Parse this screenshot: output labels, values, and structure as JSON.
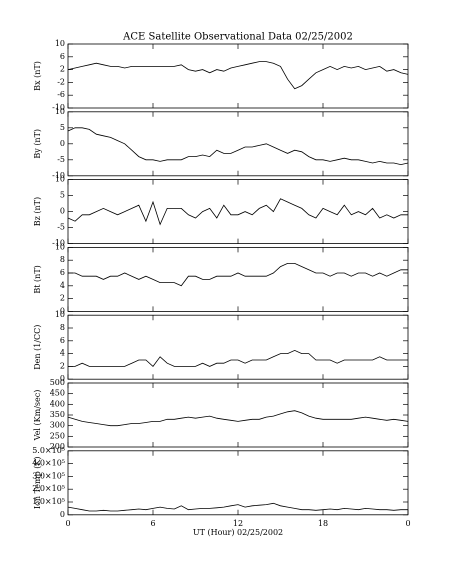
{
  "title": "ACE Satellite Observational Data   02/25/2002",
  "xlabel": "UT (Hour)   02/25/2002",
  "chart_data": [
    {
      "type": "line",
      "ylabel": "Bx (nT)",
      "color": "#000000",
      "x": [
        0,
        0.5,
        1,
        1.5,
        2,
        2.5,
        3,
        3.5,
        4,
        4.5,
        5,
        5.5,
        6,
        6.5,
        7,
        7.5,
        8,
        8.5,
        9,
        9.5,
        10,
        10.5,
        11,
        11.5,
        12,
        12.5,
        13,
        13.5,
        14,
        14.5,
        15,
        15.5,
        16,
        16.5,
        17,
        17.5,
        18,
        18.5,
        19,
        19.5,
        20,
        20.5,
        21,
        21.5,
        22,
        22.5,
        23,
        23.5,
        24
      ],
      "values": [
        2,
        2.5,
        3,
        3.5,
        4,
        3.5,
        3,
        3,
        2.5,
        3,
        3,
        3,
        3,
        3,
        3,
        3,
        3.5,
        2,
        1.5,
        2,
        1,
        2,
        1.5,
        2.5,
        3,
        3.5,
        4,
        4.5,
        4.5,
        4,
        3,
        -1,
        -4,
        -3,
        -1,
        1,
        2,
        3,
        2,
        3,
        2.5,
        3,
        2,
        2.5,
        3,
        1.5,
        2,
        1,
        0.5
      ],
      "xlim": [
        0,
        24
      ],
      "xticks": [
        0,
        6,
        12,
        18,
        {
          "value": 24,
          "label": "0"
        }
      ],
      "ylim": [
        -10,
        10
      ],
      "yticks": [
        -10,
        -6,
        -2,
        2,
        6,
        10
      ]
    },
    {
      "type": "line",
      "ylabel": "By (nT)",
      "color": "#000000",
      "x": [
        0,
        0.5,
        1,
        1.5,
        2,
        2.5,
        3,
        3.5,
        4,
        4.5,
        5,
        5.5,
        6,
        6.5,
        7,
        7.5,
        8,
        8.5,
        9,
        9.5,
        10,
        10.5,
        11,
        11.5,
        12,
        12.5,
        13,
        13.5,
        14,
        14.5,
        15,
        15.5,
        16,
        16.5,
        17,
        17.5,
        18,
        18.5,
        19,
        19.5,
        20,
        20.5,
        21,
        21.5,
        22,
        22.5,
        23,
        23.5,
        24
      ],
      "values": [
        4,
        5,
        5,
        4.5,
        3,
        2.5,
        2,
        1,
        0,
        -2,
        -4,
        -5,
        -5,
        -5.5,
        -5,
        -5,
        -5,
        -4,
        -4,
        -3.5,
        -4,
        -2,
        -3,
        -3,
        -2,
        -1,
        -1,
        -0.5,
        0,
        -1,
        -2,
        -3,
        -2,
        -2.5,
        -4,
        -5,
        -5,
        -5.5,
        -5,
        -4.5,
        -5,
        -5,
        -5.5,
        -6,
        -5.5,
        -6,
        -6,
        -6.5,
        -6
      ],
      "xlim": [
        0,
        24
      ],
      "xticks": [
        0,
        6,
        12,
        18,
        {
          "value": 24,
          "label": "0"
        }
      ],
      "ylim": [
        -10,
        10
      ],
      "yticks": [
        -10,
        -5,
        0,
        5,
        10
      ]
    },
    {
      "type": "line",
      "ylabel": "Bz (nT)",
      "color": "#000000",
      "x": [
        0,
        0.5,
        1,
        1.5,
        2,
        2.5,
        3,
        3.5,
        4,
        4.5,
        5,
        5.5,
        6,
        6.5,
        7,
        7.5,
        8,
        8.5,
        9,
        9.5,
        10,
        10.5,
        11,
        11.5,
        12,
        12.5,
        13,
        13.5,
        14,
        14.5,
        15,
        15.5,
        16,
        16.5,
        17,
        17.5,
        18,
        18.5,
        19,
        19.5,
        20,
        20.5,
        21,
        21.5,
        22,
        22.5,
        23,
        23.5,
        24
      ],
      "values": [
        -2,
        -3,
        -1,
        -1,
        0,
        1,
        0,
        -1,
        0,
        1,
        2,
        -3,
        3,
        -4,
        1,
        1,
        1,
        -1,
        -2,
        0,
        1,
        -2,
        2,
        -1,
        -1,
        0,
        -1,
        1,
        2,
        0,
        4,
        3,
        2,
        1,
        -1,
        -2,
        1,
        0,
        -1,
        2,
        -1,
        0,
        -1,
        1,
        -2,
        -1,
        -2,
        -1,
        -1
      ],
      "xlim": [
        0,
        24
      ],
      "xticks": [
        0,
        6,
        12,
        18,
        {
          "value": 24,
          "label": "0"
        }
      ],
      "ylim": [
        -10,
        10
      ],
      "yticks": [
        -10,
        -5,
        0,
        5,
        10
      ]
    },
    {
      "type": "line",
      "ylabel": "Bt (nT)",
      "color": "#000000",
      "x": [
        0,
        0.5,
        1,
        1.5,
        2,
        2.5,
        3,
        3.5,
        4,
        4.5,
        5,
        5.5,
        6,
        6.5,
        7,
        7.5,
        8,
        8.5,
        9,
        9.5,
        10,
        10.5,
        11,
        11.5,
        12,
        12.5,
        13,
        13.5,
        14,
        14.5,
        15,
        15.5,
        16,
        16.5,
        17,
        17.5,
        18,
        18.5,
        19,
        19.5,
        20,
        20.5,
        21,
        21.5,
        22,
        22.5,
        23,
        23.5,
        24
      ],
      "values": [
        6,
        6,
        5.5,
        5.5,
        5.5,
        5,
        5.5,
        5.5,
        6,
        5.5,
        5,
        5.5,
        5,
        4.5,
        4.5,
        4.5,
        4,
        5.5,
        5.5,
        5,
        5,
        5.5,
        5.5,
        5.5,
        6,
        5.5,
        5.5,
        5.5,
        5.5,
        6,
        7,
        7.5,
        7.5,
        7,
        6.5,
        6,
        6,
        5.5,
        6,
        6,
        5.5,
        6,
        6,
        5.5,
        6,
        5.5,
        6,
        6.5,
        6.5
      ],
      "xlim": [
        0,
        24
      ],
      "xticks": [
        0,
        6,
        12,
        18,
        {
          "value": 24,
          "label": "0"
        }
      ],
      "ylim": [
        0,
        10
      ],
      "yticks": [
        0,
        2,
        4,
        6,
        8,
        10
      ]
    },
    {
      "type": "line",
      "ylabel": "Den (1/CC)",
      "color": "#000000",
      "x": [
        0,
        0.5,
        1,
        1.5,
        2,
        2.5,
        3,
        3.5,
        4,
        4.5,
        5,
        5.5,
        6,
        6.5,
        7,
        7.5,
        8,
        8.5,
        9,
        9.5,
        10,
        10.5,
        11,
        11.5,
        12,
        12.5,
        13,
        13.5,
        14,
        14.5,
        15,
        15.5,
        16,
        16.5,
        17,
        17.5,
        18,
        18.5,
        19,
        19.5,
        20,
        20.5,
        21,
        21.5,
        22,
        22.5,
        23,
        23.5,
        24
      ],
      "values": [
        2,
        2,
        2.5,
        2,
        2,
        2,
        2,
        2,
        2,
        2.5,
        3,
        3,
        2,
        3.5,
        2.5,
        2,
        2,
        2,
        2,
        2.5,
        2,
        2.5,
        2.5,
        3,
        3,
        2.5,
        3,
        3,
        3,
        3.5,
        4,
        4,
        4.5,
        4,
        4,
        3,
        3,
        3,
        2.5,
        3,
        3,
        3,
        3,
        3,
        3.5,
        3,
        3,
        3,
        3
      ],
      "xlim": [
        0,
        24
      ],
      "xticks": [
        0,
        6,
        12,
        18,
        {
          "value": 24,
          "label": "0"
        }
      ],
      "ylim": [
        0,
        10
      ],
      "yticks": [
        0,
        2,
        4,
        6,
        8,
        10
      ]
    },
    {
      "type": "line",
      "ylabel": "Vel (Km/sec)",
      "color": "#000000",
      "x": [
        0,
        0.5,
        1,
        1.5,
        2,
        2.5,
        3,
        3.5,
        4,
        4.5,
        5,
        5.5,
        6,
        6.5,
        7,
        7.5,
        8,
        8.5,
        9,
        9.5,
        10,
        10.5,
        11,
        11.5,
        12,
        12.5,
        13,
        13.5,
        14,
        14.5,
        15,
        15.5,
        16,
        16.5,
        17,
        17.5,
        18,
        18.5,
        19,
        19.5,
        20,
        20.5,
        21,
        21.5,
        22,
        22.5,
        23,
        23.5,
        24
      ],
      "values": [
        340,
        330,
        320,
        315,
        310,
        305,
        300,
        300,
        305,
        310,
        310,
        315,
        320,
        320,
        330,
        330,
        335,
        340,
        335,
        340,
        345,
        335,
        330,
        325,
        320,
        325,
        330,
        330,
        340,
        345,
        355,
        365,
        370,
        360,
        345,
        335,
        330,
        330,
        330,
        330,
        330,
        335,
        340,
        335,
        330,
        325,
        330,
        325,
        320
      ],
      "xlim": [
        0,
        24
      ],
      "xticks": [
        0,
        6,
        12,
        18,
        {
          "value": 24,
          "label": "0"
        }
      ],
      "ylim": [
        200,
        500
      ],
      "yticks": [
        200,
        250,
        300,
        350,
        400,
        450,
        500
      ]
    },
    {
      "type": "line",
      "ylabel": "Ion Temp (K)",
      "color": "#000000",
      "x": [
        0,
        0.5,
        1,
        1.5,
        2,
        2.5,
        3,
        3.5,
        4,
        4.5,
        5,
        5.5,
        6,
        6.5,
        7,
        7.5,
        8,
        8.5,
        9,
        9.5,
        10,
        10.5,
        11,
        11.5,
        12,
        12.5,
        13,
        13.5,
        14,
        14.5,
        15,
        15.5,
        16,
        16.5,
        17,
        17.5,
        18,
        18.5,
        19,
        19.5,
        20,
        20.5,
        21,
        21.5,
        22,
        22.5,
        23,
        23.5,
        24
      ],
      "values": [
        60000,
        50000,
        40000,
        30000,
        30000,
        35000,
        30000,
        30000,
        35000,
        40000,
        45000,
        40000,
        50000,
        60000,
        50000,
        45000,
        70000,
        40000,
        45000,
        50000,
        50000,
        55000,
        60000,
        70000,
        80000,
        60000,
        70000,
        75000,
        80000,
        90000,
        70000,
        60000,
        50000,
        40000,
        40000,
        35000,
        40000,
        45000,
        40000,
        50000,
        45000,
        40000,
        50000,
        45000,
        40000,
        40000,
        35000,
        40000,
        40000
      ],
      "xlim": [
        0,
        24
      ],
      "xticks": [
        0,
        6,
        12,
        18,
        {
          "value": 24,
          "label": "0"
        }
      ],
      "ylim": [
        0,
        500000
      ],
      "yticks": [
        0,
        {
          "value": 100000,
          "label": "1.0×10⁵"
        },
        {
          "value": 200000,
          "label": "2.0×10⁵"
        },
        {
          "value": 300000,
          "label": "3.0×10⁵"
        },
        {
          "value": 400000,
          "label": "4.0×10⁵"
        },
        {
          "value": 500000,
          "label": "5.0×10⁵"
        }
      ]
    }
  ]
}
